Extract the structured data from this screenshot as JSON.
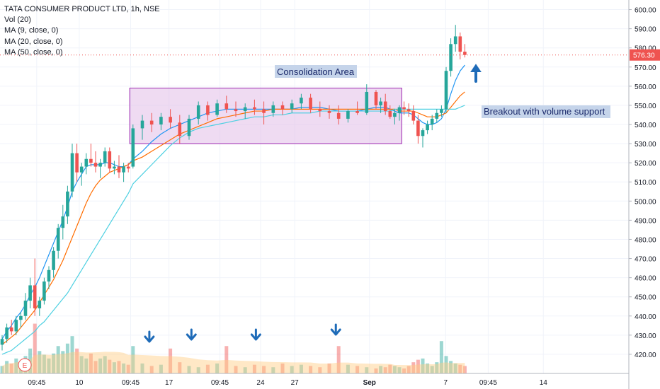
{
  "legend": {
    "title": "TATA CONSUMER PRODUCT LTD, 1h, NSE",
    "vol": "Vol (20)",
    "ma9": "MA (9, close, 0)",
    "ma20": "MA (20, close, 0)",
    "ma50": "MA (50, close, 0)"
  },
  "colors": {
    "up": "#26a69a",
    "down": "#ef5350",
    "ma9": "#2196f3",
    "ma20": "#ff6d00",
    "ma50": "#4dd0e1",
    "box_fill": "#e1bee7",
    "box_stroke": "#9c27b0",
    "arrow": "#1e6bb8",
    "vol_ma": "#ffcc80"
  },
  "annotations": {
    "consolidation": "Consolidation Area",
    "breakout": "Breakout with volume support",
    "earnings_marker": "E"
  },
  "chart_data": {
    "type": "candlestick",
    "ylim": [
      410,
      605
    ],
    "y_ticks": [
      420,
      430,
      440,
      450,
      460,
      470,
      480,
      490,
      500,
      510,
      520,
      530,
      540,
      550,
      560,
      570,
      580,
      590,
      600
    ],
    "y_tick_labels": [
      "420.00",
      "430.00",
      "440.00",
      "450.00",
      "460.00",
      "470.00",
      "480.00",
      "490.00",
      "500.00",
      "510.00",
      "520.00",
      "530.00",
      "540.00",
      "550.00",
      "560.00",
      "570.00",
      "580.00",
      "590.00",
      "600.00"
    ],
    "x_tick_labels": [
      "09:45",
      "10",
      "09:45",
      "17",
      "09:45",
      "24",
      "27",
      "Sep",
      "7",
      "09:45",
      "14"
    ],
    "x_tick_bars": [
      7.4,
      16.5,
      27.5,
      35.7,
      46.6,
      55.3,
      62.6,
      78.6,
      94.9,
      104,
      115.8
    ],
    "last_price": "576.30",
    "consolidation_zone": {
      "price_low": 530,
      "price_high": 559,
      "bar_start": 27.3,
      "bar_end": 85.5
    },
    "candles": [
      [
        425,
        430,
        422,
        428
      ],
      [
        428,
        436,
        426,
        434
      ],
      [
        434,
        438,
        430,
        432
      ],
      [
        432,
        440,
        430,
        438
      ],
      [
        438,
        442,
        434,
        440
      ],
      [
        440,
        452,
        438,
        448
      ],
      [
        448,
        460,
        444,
        456
      ],
      [
        456,
        470,
        440,
        444
      ],
      [
        444,
        450,
        440,
        448
      ],
      [
        448,
        460,
        446,
        458
      ],
      [
        458,
        466,
        454,
        464
      ],
      [
        464,
        476,
        460,
        474
      ],
      [
        474,
        488,
        470,
        486
      ],
      [
        486,
        498,
        480,
        492
      ],
      [
        492,
        508,
        488,
        505
      ],
      [
        505,
        530,
        502,
        525
      ],
      [
        525,
        530,
        510,
        515
      ],
      [
        515,
        520,
        508,
        518
      ],
      [
        518,
        525,
        514,
        522
      ],
      [
        522,
        530,
        518,
        520
      ],
      [
        520,
        526,
        515,
        518
      ],
      [
        518,
        522,
        512,
        520
      ],
      [
        520,
        528,
        518,
        526
      ],
      [
        526,
        528,
        515,
        517
      ],
      [
        517,
        521,
        514,
        518
      ],
      [
        518,
        524,
        512,
        515
      ],
      [
        515,
        520,
        510,
        518
      ],
      [
        518,
        520,
        515,
        517
      ],
      [
        518,
        540,
        517,
        538
      ],
      [
        538,
        545,
        532,
        542
      ],
      [
        542,
        546,
        536,
        540
      ],
      [
        540,
        546,
        537,
        544
      ],
      [
        544,
        548,
        538,
        541
      ],
      [
        541,
        545,
        530,
        534
      ],
      [
        534,
        545,
        532,
        543
      ],
      [
        543,
        552,
        540,
        550
      ],
      [
        550,
        552,
        542,
        545
      ],
      [
        545,
        553,
        544,
        551
      ],
      [
        551,
        555,
        546,
        548
      ],
      [
        548,
        552,
        544,
        547
      ],
      [
        547,
        551,
        543,
        549
      ],
      [
        549,
        553,
        545,
        548
      ],
      [
        548,
        552,
        540,
        546
      ],
      [
        546,
        552,
        544,
        550
      ],
      [
        550,
        552,
        545,
        548
      ],
      [
        548,
        553,
        546,
        551
      ],
      [
        551,
        556,
        548,
        554
      ],
      [
        554,
        556,
        546,
        548
      ],
      [
        548,
        552,
        544,
        547
      ],
      [
        547,
        550,
        543,
        546
      ],
      [
        546,
        550,
        540,
        543
      ],
      [
        543,
        548,
        541,
        547
      ],
      [
        547,
        552,
        545,
        546
      ],
      [
        546,
        561,
        545,
        557
      ],
      [
        557,
        558,
        548,
        550
      ],
      [
        550,
        554,
        546,
        552
      ],
      [
        552,
        556,
        545,
        547
      ],
      [
        547,
        550,
        543,
        544
      ],
      [
        544,
        548,
        540,
        546
      ],
      [
        546,
        550,
        542,
        549
      ],
      [
        549,
        552,
        545,
        548
      ],
      [
        548,
        551,
        544,
        547
      ],
      [
        547,
        550,
        540,
        542
      ],
      [
        542,
        545,
        530,
        534
      ],
      [
        534,
        538,
        528,
        537
      ],
      [
        537,
        542,
        535,
        540
      ],
      [
        540,
        545,
        537,
        543
      ],
      [
        543,
        548,
        541,
        546
      ],
      [
        546,
        550,
        544,
        548
      ],
      [
        548,
        570,
        546,
        568
      ],
      [
        568,
        585,
        565,
        582
      ],
      [
        582,
        592,
        578,
        586
      ],
      [
        586,
        588,
        574,
        578
      ],
      [
        578,
        582,
        575,
        576.3
      ]
    ],
    "candle_bar_pos": [
      0,
      1,
      2,
      3,
      4,
      5,
      6,
      7,
      8,
      9,
      10,
      11,
      12,
      13,
      14,
      15,
      16,
      17,
      18,
      19,
      20,
      21,
      22,
      23,
      24,
      25,
      26,
      27,
      28,
      30,
      32,
      34,
      36,
      38,
      40,
      42,
      44,
      46,
      48,
      50,
      52,
      54,
      56,
      58,
      60,
      62,
      64,
      66,
      68,
      70,
      72,
      74,
      76,
      78,
      80,
      81,
      82,
      83,
      84,
      85,
      86,
      87,
      88,
      89,
      90,
      91,
      92,
      93,
      94,
      95,
      96,
      97,
      98,
      99
    ],
    "volume": {
      "ylim": [
        0,
        50
      ],
      "values": [
        6,
        10,
        8,
        12,
        9,
        14,
        20,
        40,
        18,
        15,
        12,
        16,
        22,
        18,
        24,
        30,
        20,
        14,
        12,
        16,
        10,
        12,
        14,
        11,
        9,
        10,
        8,
        7,
        22,
        8,
        6,
        7,
        20,
        9,
        6,
        5,
        7,
        8,
        22,
        6,
        5,
        7,
        6,
        5,
        8,
        6,
        7,
        6,
        5,
        8,
        22,
        7,
        6,
        5,
        4,
        6,
        5,
        7,
        6,
        5,
        4,
        6,
        9,
        11,
        12,
        8,
        6,
        9,
        26,
        14,
        10,
        8,
        7,
        6
      ]
    },
    "series": [
      {
        "name": "MA (9, close, 0)",
        "values": [
          428,
          432,
          435,
          439,
          442,
          446,
          451,
          455,
          460,
          466,
          472,
          478,
          484,
          490,
          497,
          505,
          510,
          514,
          518,
          519,
          519,
          519,
          520,
          520,
          519,
          518,
          518,
          519,
          522,
          526,
          531,
          535,
          538,
          540,
          542,
          544,
          546,
          547,
          548,
          548,
          548,
          548,
          548,
          548,
          548,
          548,
          549,
          549,
          549,
          548,
          547,
          547,
          547,
          548,
          549,
          549,
          549,
          548,
          547,
          546,
          546,
          546,
          545,
          543,
          541,
          540,
          540,
          541,
          543,
          548,
          556,
          563,
          568,
          571
        ]
      },
      {
        "name": "MA (20, close, 0)",
        "values": [
          425,
          427,
          429,
          431,
          434,
          437,
          440,
          443,
          447,
          451,
          455,
          459,
          464,
          469,
          475,
          481,
          487,
          493,
          499,
          504,
          508,
          511,
          513,
          515,
          516,
          517,
          518,
          519,
          521,
          523,
          526,
          529,
          532,
          535,
          537,
          539,
          541,
          543,
          544,
          545,
          546,
          547,
          547,
          548,
          548,
          548,
          548,
          548,
          548,
          548,
          548,
          548,
          548,
          548,
          548,
          548,
          548,
          548,
          548,
          547,
          547,
          547,
          547,
          546,
          545,
          544,
          544,
          544,
          545,
          546,
          549,
          552,
          555,
          557
        ]
      },
      {
        "name": "MA (50, close, 0)",
        "values": [
          420,
          421,
          422,
          424,
          426,
          428,
          430,
          432,
          435,
          437,
          440,
          443,
          446,
          449,
          452,
          456,
          460,
          464,
          468,
          472,
          476,
          480,
          484,
          488,
          492,
          496,
          500,
          504,
          509,
          514,
          519,
          524,
          529,
          533,
          536,
          538,
          539,
          540,
          541,
          542,
          543,
          544,
          544,
          545,
          545,
          546,
          546,
          546,
          547,
          547,
          547,
          547,
          547,
          547,
          547,
          547,
          547,
          547,
          548,
          548,
          548,
          548,
          548,
          548,
          548,
          548,
          548,
          548,
          548,
          548,
          548,
          548,
          549,
          550
        ]
      }
    ]
  }
}
